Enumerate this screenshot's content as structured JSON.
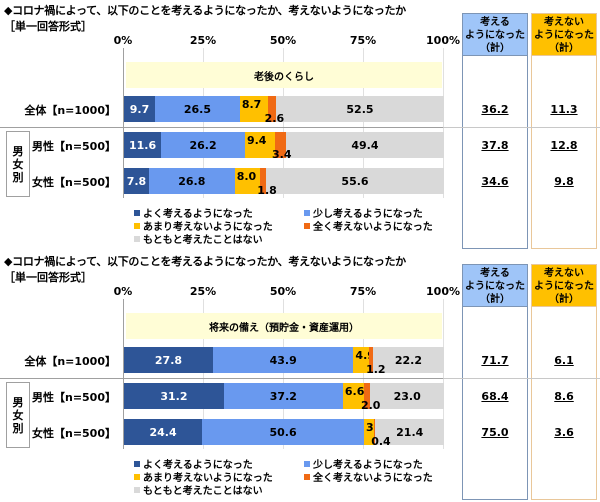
{
  "panels": [
    {
      "title": "◆コロナ禍によって、以下のことを考えるようになったか、考えないようになったか",
      "subtitle": "［単一回答形式］",
      "category": "老後のくらし",
      "axis_ticks": [
        "0%",
        "25%",
        "50%",
        "75%",
        "100%"
      ],
      "group_label": [
        "男",
        "女",
        "別"
      ],
      "rows": [
        {
          "label": "全体【n=1000】",
          "values": [
            "9.7",
            "26.5",
            "8.7",
            "2.6",
            "52.5"
          ],
          "sum_pos": "36.2",
          "sum_neg": "11.3"
        },
        {
          "label": "男性【n=500】",
          "values": [
            "11.6",
            "26.2",
            "9.4",
            "3.4",
            "49.4"
          ],
          "sum_pos": "37.8",
          "sum_neg": "12.8"
        },
        {
          "label": "女性【n=500】",
          "values": [
            "7.8",
            "26.8",
            "8.0",
            "1.8",
            "55.6"
          ],
          "sum_pos": "34.6",
          "sum_neg": "9.8"
        }
      ],
      "sum_headers": {
        "pos": [
          "考える",
          "ようになった",
          "（計）"
        ],
        "neg": [
          "考えない",
          "ようになった",
          "（計）"
        ]
      }
    },
    {
      "title": "◆コロナ禍によって、以下のことを考えるようになったか、考えないようになったか",
      "subtitle": "［単一回答形式］",
      "category": "将来の備え（預貯金・資産運用）",
      "axis_ticks": [
        "0%",
        "25%",
        "50%",
        "75%",
        "100%"
      ],
      "group_label": [
        "男",
        "女",
        "別"
      ],
      "rows": [
        {
          "label": "全体【n=1000】",
          "values": [
            "27.8",
            "43.9",
            "4.9",
            "1.2",
            "22.2"
          ],
          "sum_pos": "71.7",
          "sum_neg": "6.1"
        },
        {
          "label": "男性【n=500】",
          "values": [
            "31.2",
            "37.2",
            "6.6",
            "2.0",
            "23.0"
          ],
          "sum_pos": "68.4",
          "sum_neg": "8.6"
        },
        {
          "label": "女性【n=500】",
          "values": [
            "24.4",
            "50.6",
            "3.2",
            "0.4",
            "21.4"
          ],
          "sum_pos": "75.0",
          "sum_neg": "3.6"
        }
      ],
      "sum_headers": {
        "pos": [
          "考える",
          "ようになった",
          "（計）"
        ],
        "neg": [
          "考えない",
          "ようになった",
          "（計）"
        ]
      }
    }
  ],
  "legend": [
    {
      "label": "よく考えるようになった",
      "color": "#2e5597"
    },
    {
      "label": "少し考えるようになった",
      "color": "#6999ef"
    },
    {
      "label": "あまり考えないようになった",
      "color": "#ffc000"
    },
    {
      "label": "全く考えないようになった",
      "color": "#f06a14"
    },
    {
      "label": "もともと考えたことはない",
      "color": "#d9d9d9"
    }
  ],
  "chart_data": [
    {
      "type": "bar",
      "orientation": "horizontal-stacked-100",
      "title": "◆コロナ禍によって、以下のことを考えるようになったか、考えないようになったか ［単一回答形式］ 老後のくらし",
      "categories": [
        "全体【n=1000】",
        "男性【n=500】",
        "女性【n=500】"
      ],
      "series": [
        {
          "name": "よく考えるようになった",
          "values": [
            9.7,
            11.6,
            7.8
          ]
        },
        {
          "name": "少し考えるようになった",
          "values": [
            26.5,
            26.2,
            26.8
          ]
        },
        {
          "name": "あまり考えないようになった",
          "values": [
            8.7,
            9.4,
            8.0
          ]
        },
        {
          "name": "全く考えないようになった",
          "values": [
            2.6,
            3.4,
            1.8
          ]
        },
        {
          "name": "もともと考えたことはない",
          "values": [
            52.5,
            49.4,
            55.6
          ]
        }
      ],
      "summary": {
        "考えるようになった（計）": [
          36.2,
          37.8,
          34.6
        ],
        "考えないようになった（計）": [
          11.3,
          12.8,
          9.8
        ]
      },
      "xlabel": "",
      "ylabel": "",
      "xlim": [
        0,
        100
      ],
      "xticks": [
        "0%",
        "25%",
        "50%",
        "75%",
        "100%"
      ],
      "legend_position": "bottom"
    },
    {
      "type": "bar",
      "orientation": "horizontal-stacked-100",
      "title": "◆コロナ禍によって、以下のことを考えるようになったか、考えないようになったか ［単一回答形式］ 将来の備え（預貯金・資産運用）",
      "categories": [
        "全体【n=1000】",
        "男性【n=500】",
        "女性【n=500】"
      ],
      "series": [
        {
          "name": "よく考えるようになった",
          "values": [
            27.8,
            31.2,
            24.4
          ]
        },
        {
          "name": "少し考えるようになった",
          "values": [
            43.9,
            37.2,
            50.6
          ]
        },
        {
          "name": "あまり考えないようになった",
          "values": [
            4.9,
            6.6,
            3.2
          ]
        },
        {
          "name": "全く考えないようになった",
          "values": [
            1.2,
            2.0,
            0.4
          ]
        },
        {
          "name": "もともと考えたことはない",
          "values": [
            22.2,
            23.0,
            21.4
          ]
        }
      ],
      "summary": {
        "考えるようになった（計）": [
          71.7,
          68.4,
          75.0
        ],
        "考えないようになった（計）": [
          6.1,
          8.6,
          3.6
        ]
      },
      "xlabel": "",
      "ylabel": "",
      "xlim": [
        0,
        100
      ],
      "xticks": [
        "0%",
        "25%",
        "50%",
        "75%",
        "100%"
      ],
      "legend_position": "bottom"
    }
  ]
}
